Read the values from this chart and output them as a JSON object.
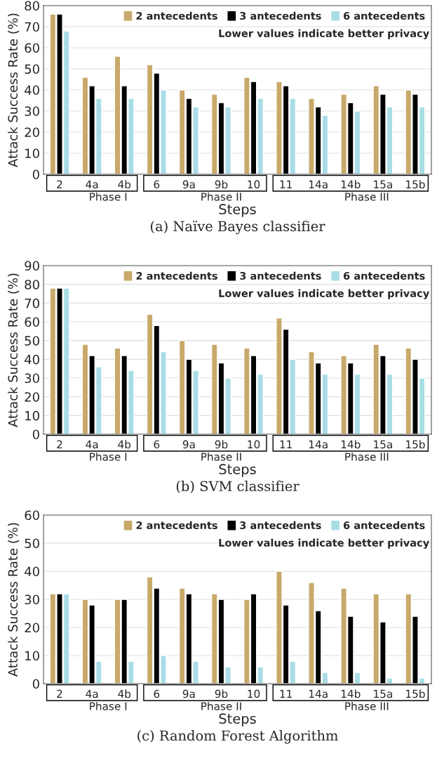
{
  "chart_data": [
    {
      "type": "bar",
      "title": "(a) Naïve Bayes classifier",
      "xlabel": "Steps",
      "ylabel": "Attack Success Rate (%)",
      "categories": [
        "2",
        "4a",
        "4b",
        "6",
        "9a",
        "9b",
        "10",
        "11",
        "14a",
        "14b",
        "15a",
        "15b"
      ],
      "series": [
        {
          "name": "2 antecedents",
          "color": "#c8a96a",
          "values": [
            76,
            46,
            56,
            52,
            40,
            38,
            46,
            44,
            36,
            38,
            42,
            40
          ]
        },
        {
          "name": "3 antecedents",
          "color": "#000000",
          "values": [
            76,
            42,
            42,
            48,
            36,
            34,
            44,
            42,
            32,
            34,
            38,
            38
          ]
        },
        {
          "name": "6 antecedents",
          "color": "#a8dde6",
          "values": [
            68,
            36,
            36,
            40,
            32,
            32,
            36,
            36,
            28,
            30,
            32,
            32
          ]
        }
      ],
      "annotations": [
        "Phase I",
        "Phase II",
        "Phase III",
        "Lower values indicate better privacy"
      ],
      "ylim": [
        0,
        80
      ],
      "yticks": [
        0,
        10,
        20,
        30,
        40,
        50,
        60,
        70,
        80
      ],
      "grid": "y",
      "legend": "top right"
    },
    {
      "type": "bar",
      "title": "(b) SVM classifier",
      "xlabel": "Steps",
      "ylabel": "Attack Success Rate (%)",
      "categories": [
        "2",
        "4a",
        "4b",
        "6",
        "9a",
        "9b",
        "10",
        "11",
        "14a",
        "14b",
        "15a",
        "15b"
      ],
      "series": [
        {
          "name": "2 antecedents",
          "color": "#c8a96a",
          "values": [
            78,
            48,
            46,
            64,
            50,
            48,
            46,
            62,
            44,
            42,
            48,
            46
          ]
        },
        {
          "name": "3 antecedents",
          "color": "#000000",
          "values": [
            78,
            42,
            42,
            58,
            40,
            38,
            42,
            56,
            38,
            38,
            42,
            40
          ]
        },
        {
          "name": "6 antecedents",
          "color": "#a8dde6",
          "values": [
            78,
            36,
            34,
            44,
            34,
            30,
            32,
            40,
            32,
            32,
            32,
            30
          ]
        }
      ],
      "annotations": [
        "Phase I",
        "Phase II",
        "Phase III",
        "Lower values indicate better privacy"
      ],
      "ylim": [
        0,
        90
      ],
      "yticks": [
        0,
        10,
        20,
        30,
        40,
        50,
        60,
        70,
        80,
        90
      ],
      "grid": "y",
      "legend": "top right"
    },
    {
      "type": "bar",
      "title": "(c) Random Forest Algorithm",
      "xlabel": "Steps",
      "ylabel": "Attack Success Rate (%)",
      "categories": [
        "2",
        "4a",
        "4b",
        "6",
        "9a",
        "9b",
        "10",
        "11",
        "14a",
        "14b",
        "15a",
        "15b"
      ],
      "series": [
        {
          "name": "2 antecedents",
          "color": "#c8a96a",
          "values": [
            32,
            30,
            30,
            38,
            34,
            32,
            30,
            40,
            36,
            34,
            32,
            32
          ]
        },
        {
          "name": "3 antecedents",
          "color": "#000000",
          "values": [
            32,
            28,
            30,
            34,
            32,
            30,
            32,
            28,
            26,
            24,
            22,
            24
          ]
        },
        {
          "name": "6 antecedents",
          "color": "#a8dde6",
          "values": [
            32,
            8,
            8,
            10,
            8,
            6,
            6,
            8,
            4,
            4,
            2,
            2
          ]
        }
      ],
      "annotations": [
        "Phase I",
        "Phase II",
        "Phase III",
        "Lower values indicate better privacy"
      ],
      "ylim": [
        0,
        60
      ],
      "yticks": [
        0,
        10,
        20,
        30,
        40,
        50,
        60
      ],
      "grid": "y",
      "legend": "top right"
    }
  ]
}
